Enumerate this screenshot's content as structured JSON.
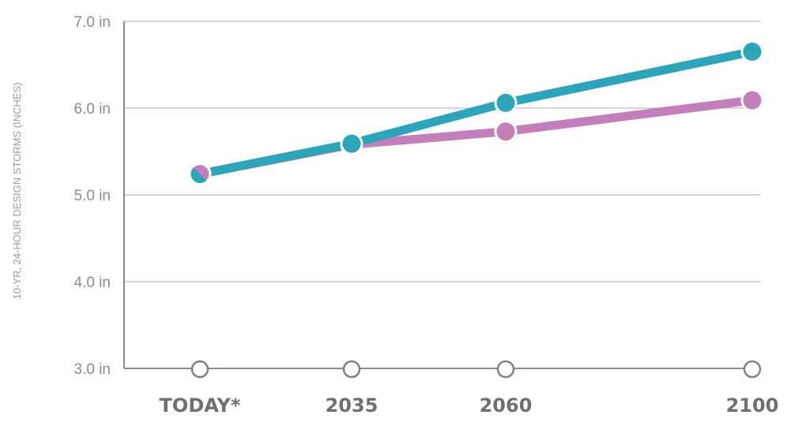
{
  "chart_data": {
    "type": "line",
    "categories": [
      "TODAY*",
      "2035",
      "2060",
      "2100"
    ],
    "ylabel": "10-YR, 24-HOUR DESIGN STORMS (INCHES)",
    "ylim": [
      3.0,
      7.0
    ],
    "yticks": [
      3.0,
      4.0,
      5.0,
      6.0,
      7.0
    ],
    "ytick_labels": [
      "3.0 in",
      "4.0 in",
      "5.0 in",
      "6.0 in",
      "7.0 in"
    ],
    "grid": true,
    "series": [
      {
        "color": "#c27fbb",
        "values": [
          5.24,
          5.58,
          5.73,
          6.09
        ]
      },
      {
        "color": "#2ea4b8",
        "values": [
          5.24,
          5.59,
          6.06,
          6.65
        ]
      }
    ],
    "axis_color": "#8a8d8e",
    "grid_color": "#c8cacb",
    "marker_color": "#8a7f7c"
  }
}
